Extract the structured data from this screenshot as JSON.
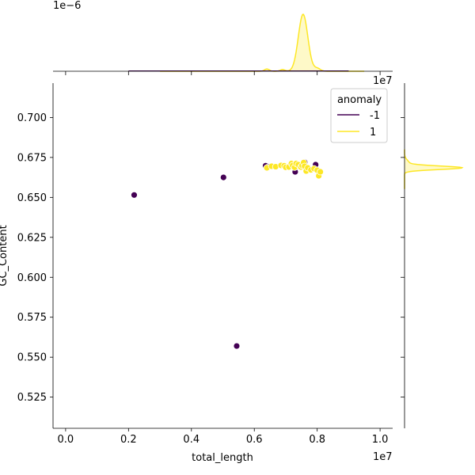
{
  "chart_data": {
    "type": "scatter",
    "xlabel": "total_length",
    "ylabel": "GC_Content",
    "x_scale_text": "1e7",
    "top_scale_text": "1e7",
    "top_marginal_scale_text": "1e−6",
    "xlim": [
      -0.04,
      1.04
    ],
    "ylim": [
      0.5055,
      0.7215
    ],
    "x_ticks": [
      0.0,
      0.2,
      0.4,
      0.6,
      0.8,
      1.0
    ],
    "x_tick_labels": [
      "0.0",
      "0.2",
      "0.4",
      "0.6",
      "0.8",
      "1.0"
    ],
    "y_ticks": [
      0.525,
      0.55,
      0.575,
      0.6,
      0.625,
      0.65,
      0.675,
      0.7
    ],
    "y_tick_labels": [
      "0.525",
      "0.550",
      "0.575",
      "0.600",
      "0.625",
      "0.650",
      "0.675",
      "0.700"
    ],
    "legend": {
      "title": "anomaly",
      "placement": "top-right",
      "entries": [
        {
          "label": "-1",
          "color": "#440154"
        },
        {
          "label": "1",
          "color": "#fde725"
        }
      ]
    },
    "series": [
      {
        "name": "-1",
        "color": "#440154",
        "points": [
          [
            0.218,
            0.6515
          ],
          [
            0.502,
            0.6625
          ],
          [
            0.544,
            0.557
          ],
          [
            0.636,
            0.6698
          ],
          [
            0.645,
            0.669
          ],
          [
            0.73,
            0.666
          ],
          [
            0.76,
            0.672
          ],
          [
            0.795,
            0.6705
          ]
        ]
      },
      {
        "name": "1",
        "color": "#fde725",
        "points": [
          [
            0.64,
            0.6685
          ],
          [
            0.655,
            0.6695
          ],
          [
            0.668,
            0.6692
          ],
          [
            0.685,
            0.67
          ],
          [
            0.695,
            0.6698
          ],
          [
            0.7,
            0.6688
          ],
          [
            0.71,
            0.669
          ],
          [
            0.718,
            0.6712
          ],
          [
            0.722,
            0.67
          ],
          [
            0.728,
            0.6688
          ],
          [
            0.733,
            0.6712
          ],
          [
            0.74,
            0.6705
          ],
          [
            0.748,
            0.669
          ],
          [
            0.752,
            0.67
          ],
          [
            0.757,
            0.6718
          ],
          [
            0.76,
            0.6695
          ],
          [
            0.765,
            0.6665
          ],
          [
            0.77,
            0.6685
          ],
          [
            0.78,
            0.6672
          ],
          [
            0.79,
            0.668
          ],
          [
            0.8,
            0.667
          ],
          [
            0.805,
            0.6635
          ],
          [
            0.81,
            0.666
          ]
        ]
      }
    ],
    "marginal_x": {
      "type": "kde",
      "color": "#fde725",
      "peak_x": 0.755
    },
    "marginal_y": {
      "type": "kde",
      "color": "#fde725",
      "peak_y": 0.6685
    }
  }
}
